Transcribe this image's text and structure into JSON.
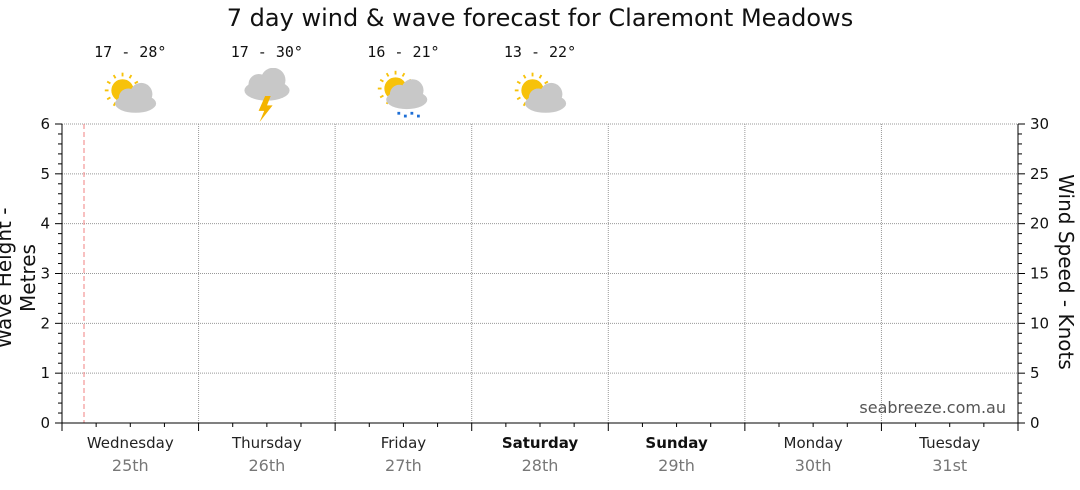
{
  "chart_data": {
    "type": "line",
    "title": "7 day wind & wave forecast for Claremont Meadows",
    "ylabel_left": "Wave Height - Metres",
    "ylabel_right": "Wind Speed - Knots",
    "ylim_left": [
      0,
      6
    ],
    "ylim_right": [
      0,
      30
    ],
    "yticks_left": [
      "0",
      "1",
      "2",
      "3",
      "4",
      "5",
      "6"
    ],
    "yticks_right": [
      "0",
      "5",
      "10",
      "15",
      "20",
      "25",
      "30"
    ],
    "grid": true,
    "series": [],
    "days": [
      {
        "name": "Wednesday",
        "date": "25th",
        "weekend": false,
        "temp": "17 - 28°",
        "icon": "partly-cloudy-icon"
      },
      {
        "name": "Thursday",
        "date": "26th",
        "weekend": false,
        "temp": "17 - 30°",
        "icon": "storm-icon"
      },
      {
        "name": "Friday",
        "date": "27th",
        "weekend": false,
        "temp": "16 - 21°",
        "icon": "shower-icon"
      },
      {
        "name": "Saturday",
        "date": "28th",
        "weekend": true,
        "temp": "13 - 22°",
        "icon": "partly-cloudy-icon"
      },
      {
        "name": "Sunday",
        "date": "29th",
        "weekend": true,
        "temp": "",
        "icon": ""
      },
      {
        "name": "Monday",
        "date": "30th",
        "weekend": false,
        "temp": "",
        "icon": ""
      },
      {
        "name": "Tuesday",
        "date": "31st",
        "weekend": false,
        "temp": "",
        "icon": ""
      }
    ]
  },
  "watermark": "seabreeze.com.au",
  "colors": {
    "sun": "#f7c20a",
    "cloud": "#c8c8c8",
    "bolt": "#f4b400",
    "rain": "#1e6fd6",
    "now_line": "#f08080",
    "grid": "#999999"
  }
}
